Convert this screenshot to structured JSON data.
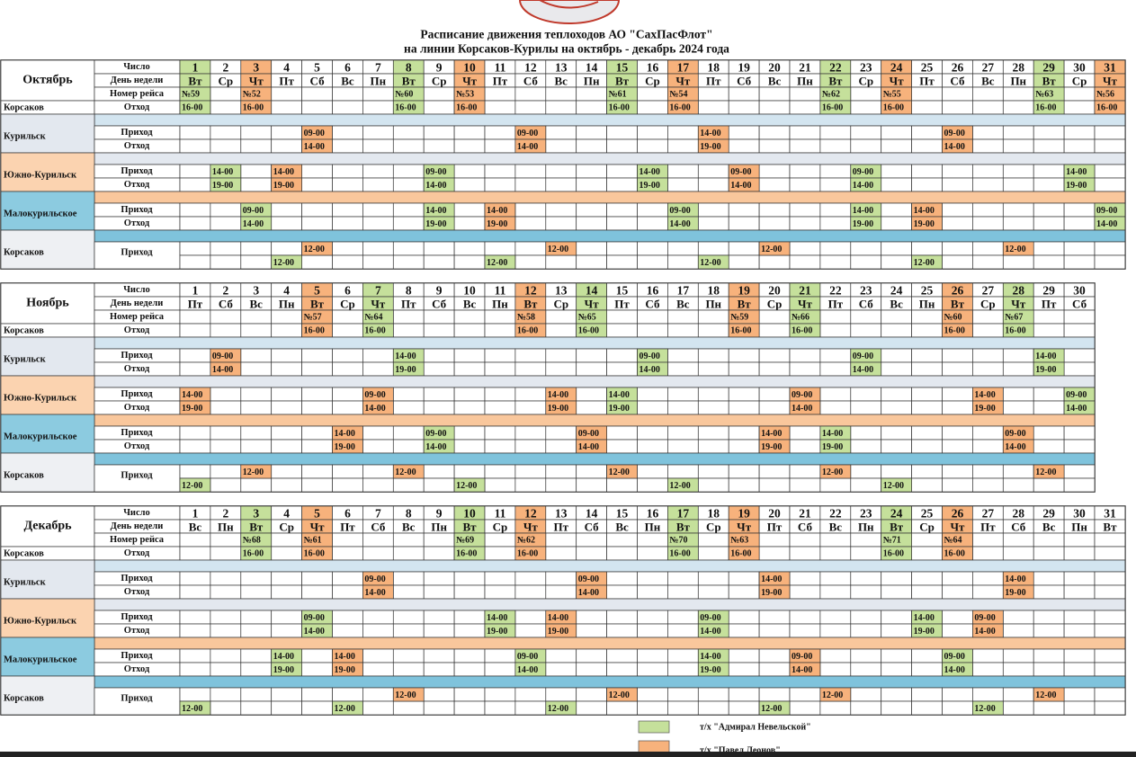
{
  "title": "Расписание движения теплоходов АО \"СахПасФлот\"",
  "subtitle": "на линии Корсаков-Курилы на октябрь - декабрь 2024 года",
  "labels": {
    "date": "Число",
    "weekday": "День недели",
    "voyage": "Номер рейса",
    "arrive": "Приход",
    "depart": "Отход"
  },
  "ports": [
    "Корсаков",
    "Курильск",
    "Южно-Курильск",
    "Малокурильское"
  ],
  "ships": [
    {
      "name": "т/х \"Адмирал Невельской\"",
      "color": "#c5e09b"
    },
    {
      "name": "т/х \"Павел Леонов\"",
      "color": "#f7b27c"
    }
  ],
  "months": [
    {
      "name": "Октябрь",
      "days": [
        1,
        2,
        3,
        4,
        5,
        6,
        7,
        8,
        9,
        10,
        11,
        12,
        13,
        14,
        15,
        16,
        17,
        18,
        19,
        20,
        21,
        22,
        23,
        24,
        25,
        26,
        27,
        28,
        29,
        30,
        31
      ],
      "weekdays": [
        "Вт",
        "Ср",
        "Чт",
        "Пт",
        "Сб",
        "Вс",
        "Пн",
        "Вт",
        "Ср",
        "Чт",
        "Пт",
        "Сб",
        "Вс",
        "Пн",
        "Вт",
        "Ср",
        "Чт",
        "Пт",
        "Сб",
        "Вс",
        "Пн",
        "Вт",
        "Ср",
        "Чт",
        "Пт",
        "Сб",
        "Вс",
        "Пн",
        "Вт",
        "Ср",
        "Чт"
      ],
      "voyages": [
        [
          1,
          "№59",
          "16-00",
          0
        ],
        [
          3,
          "№52",
          "16-00",
          1
        ],
        [
          8,
          "№60",
          "16-00",
          0
        ],
        [
          10,
          "№53",
          "16-00",
          1
        ],
        [
          15,
          "№61",
          "16-00",
          0
        ],
        [
          17,
          "№54",
          "16-00",
          1
        ],
        [
          22,
          "№62",
          "16-00",
          0
        ],
        [
          24,
          "№55",
          "16-00",
          1
        ],
        [
          29,
          "№63",
          "16-00",
          0
        ],
        [
          31,
          "№56",
          "16-00",
          1
        ]
      ],
      "stops": [
        {
          "arrive": [
            [
              5,
              "09-00",
              1
            ],
            [
              12,
              "09-00",
              1
            ],
            [
              18,
              "14-00",
              1
            ],
            [
              26,
              "09-00",
              1
            ]
          ],
          "depart": [
            [
              5,
              "14-00",
              1
            ],
            [
              12,
              "14-00",
              1
            ],
            [
              18,
              "19-00",
              1
            ],
            [
              26,
              "14-00",
              1
            ]
          ]
        },
        {
          "arrive": [
            [
              2,
              "14-00",
              0
            ],
            [
              4,
              "14-00",
              1
            ],
            [
              9,
              "09-00",
              0
            ],
            [
              16,
              "14-00",
              0
            ],
            [
              19,
              "09-00",
              1
            ],
            [
              23,
              "09-00",
              0
            ],
            [
              30,
              "14-00",
              0
            ]
          ],
          "depart": [
            [
              2,
              "19-00",
              0
            ],
            [
              4,
              "19-00",
              1
            ],
            [
              9,
              "14-00",
              0
            ],
            [
              16,
              "19-00",
              0
            ],
            [
              19,
              "14-00",
              1
            ],
            [
              23,
              "14-00",
              0
            ],
            [
              30,
              "19-00",
              0
            ]
          ]
        },
        {
          "arrive": [
            [
              3,
              "09-00",
              0
            ],
            [
              9,
              "14-00",
              0
            ],
            [
              11,
              "14-00",
              1
            ],
            [
              17,
              "09-00",
              0
            ],
            [
              23,
              "14-00",
              0
            ],
            [
              25,
              "14-00",
              1
            ],
            [
              31,
              "09-00",
              0
            ]
          ],
          "depart": [
            [
              3,
              "14-00",
              0
            ],
            [
              9,
              "19-00",
              0
            ],
            [
              11,
              "19-00",
              1
            ],
            [
              17,
              "14-00",
              0
            ],
            [
              23,
              "19-00",
              0
            ],
            [
              25,
              "19-00",
              1
            ],
            [
              31,
              "14-00",
              0
            ]
          ]
        }
      ],
      "return": [
        [
          4,
          "12-00",
          0
        ],
        [
          5,
          "12-00",
          1
        ],
        [
          11,
          "12-00",
          0
        ],
        [
          13,
          "12-00",
          1
        ],
        [
          18,
          "12-00",
          0
        ],
        [
          20,
          "12-00",
          1
        ],
        [
          25,
          "12-00",
          0
        ],
        [
          28,
          "12-00",
          1
        ]
      ]
    },
    {
      "name": "Ноябрь",
      "days": [
        1,
        2,
        3,
        4,
        5,
        6,
        7,
        8,
        9,
        10,
        11,
        12,
        13,
        14,
        15,
        16,
        17,
        18,
        19,
        20,
        21,
        22,
        23,
        24,
        25,
        26,
        27,
        28,
        29,
        30
      ],
      "weekdays": [
        "Пт",
        "Сб",
        "Вс",
        "Пн",
        "Вт",
        "Ср",
        "Чт",
        "Пт",
        "Сб",
        "Вс",
        "Пн",
        "Вт",
        "Ср",
        "Чт",
        "Пт",
        "Сб",
        "Вс",
        "Пн",
        "Вт",
        "Ср",
        "Чт",
        "Пт",
        "Сб",
        "Вс",
        "Пн",
        "Вт",
        "Ср",
        "Чт",
        "Пт",
        "Сб"
      ],
      "voyages": [
        [
          5,
          "№57",
          "16-00",
          1
        ],
        [
          7,
          "№64",
          "16-00",
          0
        ],
        [
          12,
          "№58",
          "16-00",
          1
        ],
        [
          14,
          "№65",
          "16-00",
          0
        ],
        [
          19,
          "№59",
          "16-00",
          1
        ],
        [
          21,
          "№66",
          "16-00",
          0
        ],
        [
          26,
          "№60",
          "16-00",
          1
        ],
        [
          28,
          "№67",
          "16-00",
          0
        ]
      ],
      "stops": [
        {
          "arrive": [
            [
              2,
              "09-00",
              1
            ],
            [
              8,
              "14-00",
              0
            ],
            [
              16,
              "09-00",
              0
            ],
            [
              23,
              "09-00",
              0
            ],
            [
              29,
              "14-00",
              0
            ]
          ],
          "depart": [
            [
              2,
              "14-00",
              1
            ],
            [
              8,
              "19-00",
              0
            ],
            [
              16,
              "14-00",
              0
            ],
            [
              23,
              "14-00",
              0
            ],
            [
              29,
              "19-00",
              0
            ]
          ]
        },
        {
          "arrive": [
            [
              1,
              "14-00",
              1
            ],
            [
              7,
              "09-00",
              1
            ],
            [
              13,
              "14-00",
              1
            ],
            [
              15,
              "14-00",
              0
            ],
            [
              21,
              "09-00",
              1
            ],
            [
              27,
              "14-00",
              1
            ],
            [
              30,
              "09-00",
              0
            ]
          ],
          "depart": [
            [
              1,
              "19-00",
              1
            ],
            [
              7,
              "14-00",
              1
            ],
            [
              13,
              "19-00",
              1
            ],
            [
              15,
              "19-00",
              0
            ],
            [
              21,
              "14-00",
              1
            ],
            [
              27,
              "19-00",
              1
            ],
            [
              30,
              "14-00",
              0
            ]
          ]
        },
        {
          "arrive": [
            [
              6,
              "14-00",
              1
            ],
            [
              9,
              "09-00",
              0
            ],
            [
              14,
              "09-00",
              1
            ],
            [
              20,
              "14-00",
              1
            ],
            [
              22,
              "14-00",
              0
            ],
            [
              28,
              "09-00",
              1
            ]
          ],
          "depart": [
            [
              6,
              "19-00",
              1
            ],
            [
              9,
              "14-00",
              0
            ],
            [
              14,
              "14-00",
              1
            ],
            [
              20,
              "19-00",
              1
            ],
            [
              22,
              "19-00",
              0
            ],
            [
              28,
              "14-00",
              1
            ]
          ]
        }
      ],
      "return": [
        [
          1,
          "12-00",
          0
        ],
        [
          3,
          "12-00",
          1
        ],
        [
          8,
          "12-00",
          1
        ],
        [
          10,
          "12-00",
          0
        ],
        [
          15,
          "12-00",
          1
        ],
        [
          17,
          "12-00",
          0
        ],
        [
          22,
          "12-00",
          1
        ],
        [
          24,
          "12-00",
          0
        ],
        [
          29,
          "12-00",
          1
        ]
      ]
    },
    {
      "name": "Декабрь",
      "days": [
        1,
        2,
        3,
        4,
        5,
        6,
        7,
        8,
        9,
        10,
        11,
        12,
        13,
        14,
        15,
        16,
        17,
        18,
        19,
        20,
        21,
        22,
        23,
        24,
        25,
        26,
        27,
        28,
        29,
        30,
        31
      ],
      "weekdays": [
        "Вс",
        "Пн",
        "Вт",
        "Ср",
        "Чт",
        "Пт",
        "Сб",
        "Вс",
        "Пн",
        "Вт",
        "Ср",
        "Чт",
        "Пт",
        "Сб",
        "Вс",
        "Пн",
        "Вт",
        "Ср",
        "Чт",
        "Пт",
        "Сб",
        "Вс",
        "Пн",
        "Вт",
        "Ср",
        "Чт",
        "Пт",
        "Сб",
        "Вс",
        "Пн",
        "Вт"
      ],
      "voyages": [
        [
          3,
          "№68",
          "16-00",
          0
        ],
        [
          5,
          "№61",
          "16-00",
          1
        ],
        [
          10,
          "№69",
          "16-00",
          0
        ],
        [
          12,
          "№62",
          "16-00",
          1
        ],
        [
          17,
          "№70",
          "16-00",
          0
        ],
        [
          19,
          "№63",
          "16-00",
          1
        ],
        [
          24,
          "№71",
          "16-00",
          0
        ],
        [
          26,
          "№64",
          "16-00",
          1
        ]
      ],
      "stops": [
        {
          "arrive": [
            [
              7,
              "09-00",
              1
            ],
            [
              14,
              "09-00",
              1
            ],
            [
              20,
              "14-00",
              1
            ],
            [
              28,
              "14-00",
              1
            ]
          ],
          "depart": [
            [
              7,
              "14-00",
              1
            ],
            [
              14,
              "14-00",
              1
            ],
            [
              20,
              "19-00",
              1
            ],
            [
              28,
              "19-00",
              1
            ]
          ]
        },
        {
          "arrive": [
            [
              5,
              "09-00",
              0
            ],
            [
              11,
              "14-00",
              0
            ],
            [
              13,
              "14-00",
              1
            ],
            [
              18,
              "09-00",
              0
            ],
            [
              25,
              "14-00",
              0
            ],
            [
              27,
              "09-00",
              1
            ]
          ],
          "depart": [
            [
              5,
              "14-00",
              0
            ],
            [
              11,
              "19-00",
              0
            ],
            [
              13,
              "19-00",
              1
            ],
            [
              18,
              "14-00",
              0
            ],
            [
              25,
              "19-00",
              0
            ],
            [
              27,
              "14-00",
              1
            ]
          ]
        },
        {
          "arrive": [
            [
              4,
              "14-00",
              0
            ],
            [
              6,
              "14-00",
              1
            ],
            [
              12,
              "09-00",
              0
            ],
            [
              18,
              "14-00",
              0
            ],
            [
              21,
              "09-00",
              1
            ],
            [
              26,
              "09-00",
              0
            ]
          ],
          "depart": [
            [
              4,
              "19-00",
              0
            ],
            [
              6,
              "19-00",
              1
            ],
            [
              12,
              "14-00",
              0
            ],
            [
              18,
              "19-00",
              0
            ],
            [
              21,
              "14-00",
              1
            ],
            [
              26,
              "14-00",
              0
            ]
          ]
        }
      ],
      "return": [
        [
          1,
          "12-00",
          0
        ],
        [
          6,
          "12-00",
          0
        ],
        [
          8,
          "12-00",
          1
        ],
        [
          13,
          "12-00",
          0
        ],
        [
          15,
          "12-00",
          1
        ],
        [
          20,
          "12-00",
          0
        ],
        [
          22,
          "12-00",
          1
        ],
        [
          27,
          "12-00",
          0
        ],
        [
          29,
          "12-00",
          1
        ]
      ]
    }
  ]
}
